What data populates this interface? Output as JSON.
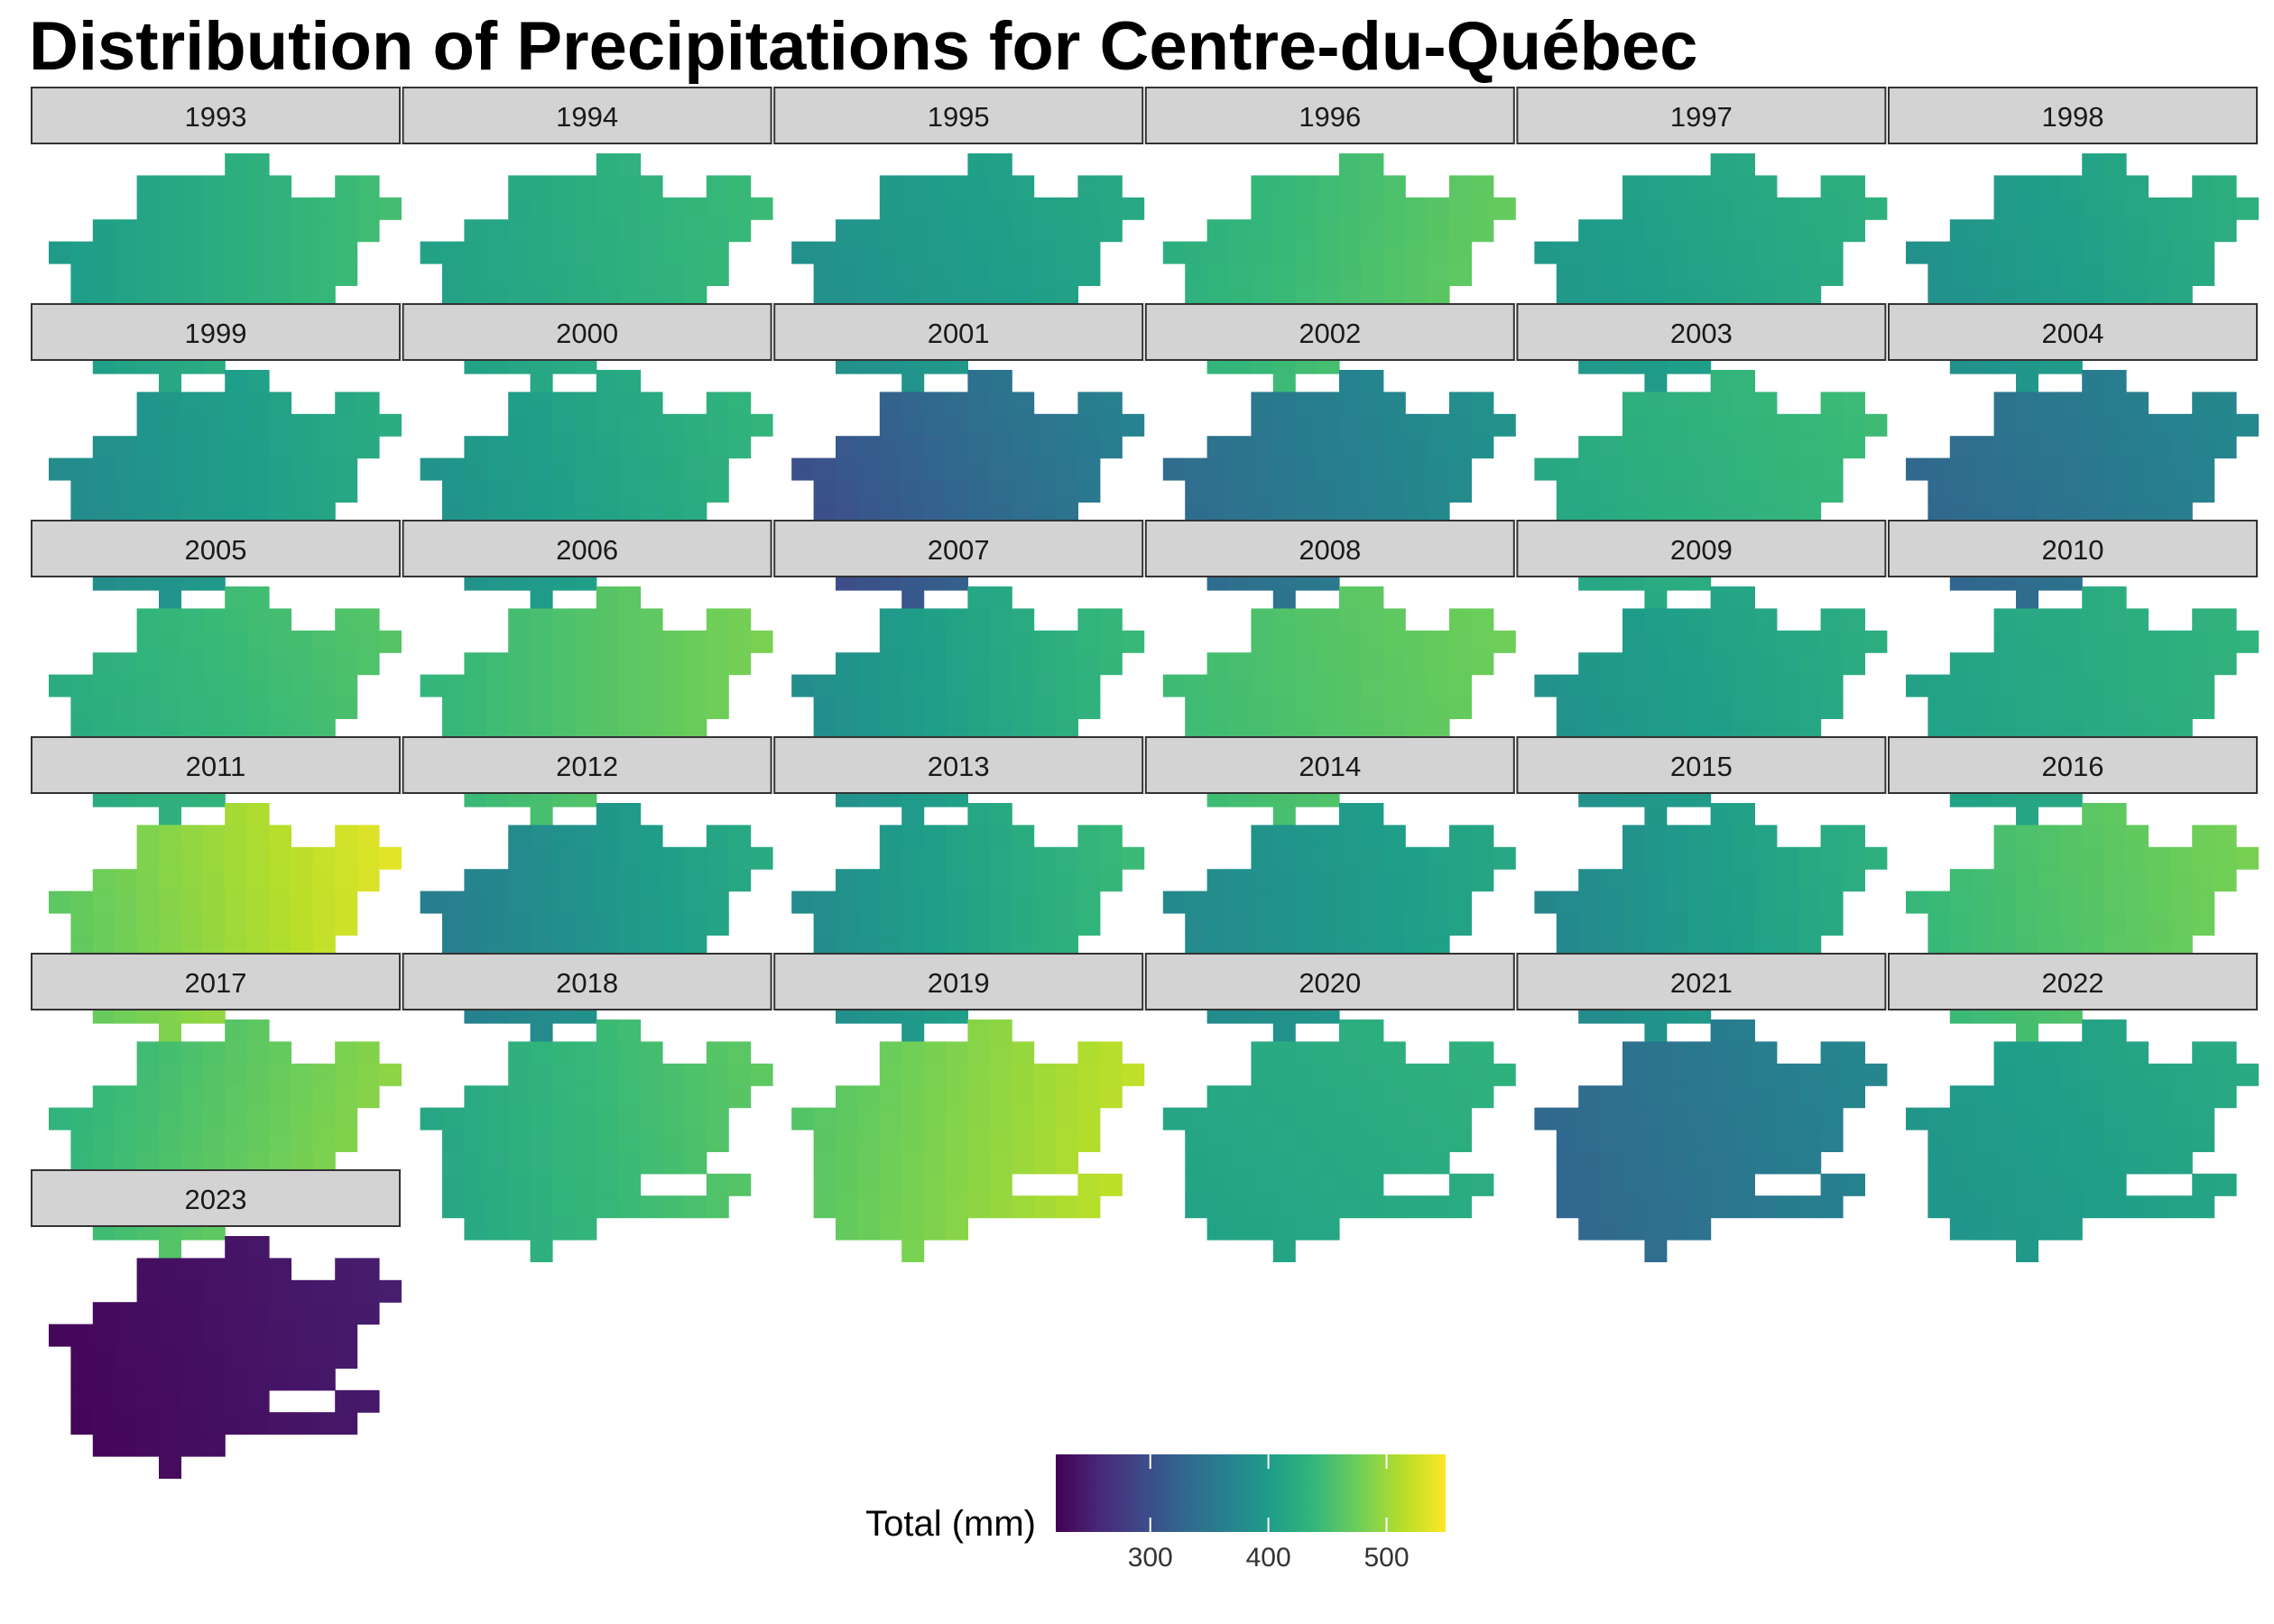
{
  "title": "Distribution of Precipitations for Centre-du-Québec",
  "colors": {
    "strip_fill": "#d3d3d3",
    "strip_border": "#333333",
    "viridis": [
      "#440154",
      "#482878",
      "#3e4989",
      "#31688e",
      "#26828e",
      "#1f9e89",
      "#35b779",
      "#6ece58",
      "#b5de2b",
      "#fde725"
    ]
  },
  "chart_data": {
    "type": "heatmap",
    "facet_by": "year",
    "facets": [
      {
        "year": "1993",
        "base": 425,
        "west_east": 50,
        "south_north": 0
      },
      {
        "year": "1994",
        "base": 425,
        "west_east": 35,
        "south_north": 5
      },
      {
        "year": "1995",
        "base": 400,
        "west_east": 30,
        "south_north": 10
      },
      {
        "year": "1996",
        "base": 450,
        "west_east": 45,
        "south_north": -5
      },
      {
        "year": "1997",
        "base": 410,
        "west_east": 30,
        "south_north": 10
      },
      {
        "year": "1998",
        "base": 405,
        "west_east": 40,
        "south_north": 10
      },
      {
        "year": "1999",
        "base": 400,
        "west_east": 45,
        "south_north": 5
      },
      {
        "year": "2000",
        "base": 410,
        "west_east": 45,
        "south_north": 10
      },
      {
        "year": "2001",
        "base": 330,
        "west_east": 60,
        "south_north": 20
      },
      {
        "year": "2002",
        "base": 360,
        "west_east": 50,
        "south_north": 10
      },
      {
        "year": "2003",
        "base": 430,
        "west_east": 25,
        "south_north": 10
      },
      {
        "year": "2004",
        "base": 350,
        "west_east": 40,
        "south_north": 15
      },
      {
        "year": "2005",
        "base": 440,
        "west_east": 35,
        "south_north": 10
      },
      {
        "year": "2006",
        "base": 460,
        "west_east": 45,
        "south_north": 0
      },
      {
        "year": "2007",
        "base": 410,
        "west_east": 60,
        "south_north": 5
      },
      {
        "year": "2008",
        "base": 460,
        "west_east": 30,
        "south_north": 5
      },
      {
        "year": "2009",
        "base": 405,
        "west_east": 35,
        "south_north": 10
      },
      {
        "year": "2010",
        "base": 420,
        "west_east": 25,
        "south_north": 5
      },
      {
        "year": "2011",
        "base": 500,
        "west_east": 70,
        "south_north": 5
      },
      {
        "year": "2012",
        "base": 390,
        "west_east": 60,
        "south_north": 5
      },
      {
        "year": "2013",
        "base": 410,
        "west_east": 65,
        "south_north": 5
      },
      {
        "year": "2014",
        "base": 395,
        "west_east": 40,
        "south_north": 5
      },
      {
        "year": "2015",
        "base": 400,
        "west_east": 55,
        "south_north": 5
      },
      {
        "year": "2016",
        "base": 460,
        "west_east": 40,
        "south_north": 5
      },
      {
        "year": "2017",
        "base": 465,
        "west_east": 60,
        "south_north": -10
      },
      {
        "year": "2018",
        "base": 440,
        "west_east": 50,
        "south_north": 5
      },
      {
        "year": "2019",
        "base": 490,
        "west_east": 60,
        "south_north": -5
      },
      {
        "year": "2020",
        "base": 420,
        "west_east": 15,
        "south_north": 10
      },
      {
        "year": "2021",
        "base": 350,
        "west_east": 40,
        "south_north": 10
      },
      {
        "year": "2022",
        "base": 405,
        "west_east": 25,
        "south_north": 10
      },
      {
        "year": "2023",
        "base": 235,
        "west_east": 20,
        "south_north": 5
      }
    ],
    "colorbar": {
      "title": "Total (mm)",
      "min": 220,
      "max": 550,
      "ticks": [
        300,
        400,
        500
      ],
      "palette": "viridis"
    },
    "grid": false,
    "legend_position": "bottom"
  }
}
